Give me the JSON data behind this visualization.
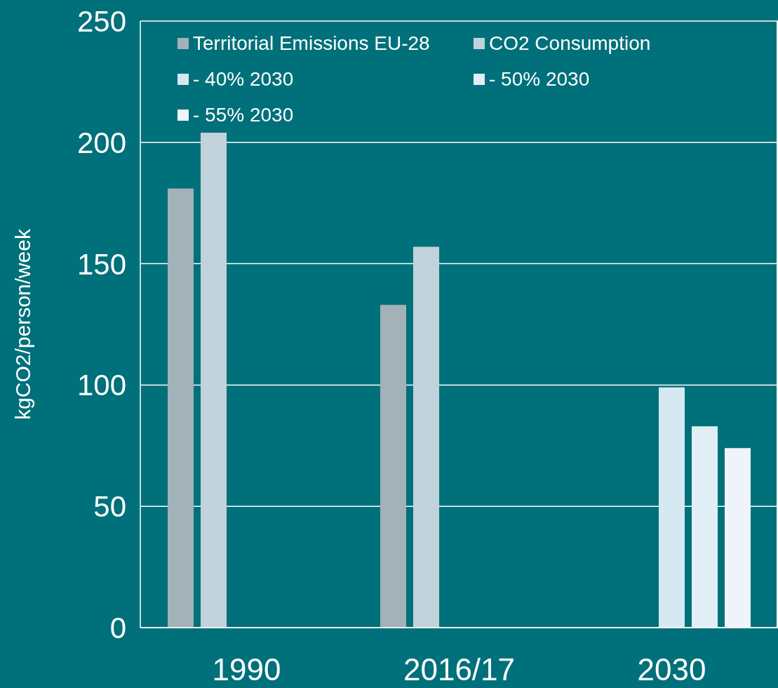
{
  "chart_data": {
    "type": "bar",
    "ylabel": "kgCO2/person/week",
    "categories": [
      "1990",
      "2016/17",
      "2030"
    ],
    "series": [
      {
        "name": "Territorial Emissions EU-28",
        "color": "#a3b1b8",
        "values": [
          181,
          133,
          null
        ]
      },
      {
        "name": "CO2 Consumption",
        "color": "#c2d2da",
        "values": [
          204,
          157,
          null
        ]
      },
      {
        "name": "- 40% 2030",
        "color": "#d6e8f2",
        "values": [
          null,
          null,
          99
        ]
      },
      {
        "name": "- 50% 2030",
        "color": "#e2eef5",
        "values": [
          null,
          null,
          83
        ]
      },
      {
        "name": "- 55% 2030",
        "color": "#eef4f9",
        "values": [
          null,
          null,
          74
        ]
      }
    ],
    "ylim": [
      0,
      250
    ],
    "yticks": [
      0,
      50,
      100,
      150,
      200,
      250
    ],
    "grid": "y",
    "legend": "top left"
  }
}
